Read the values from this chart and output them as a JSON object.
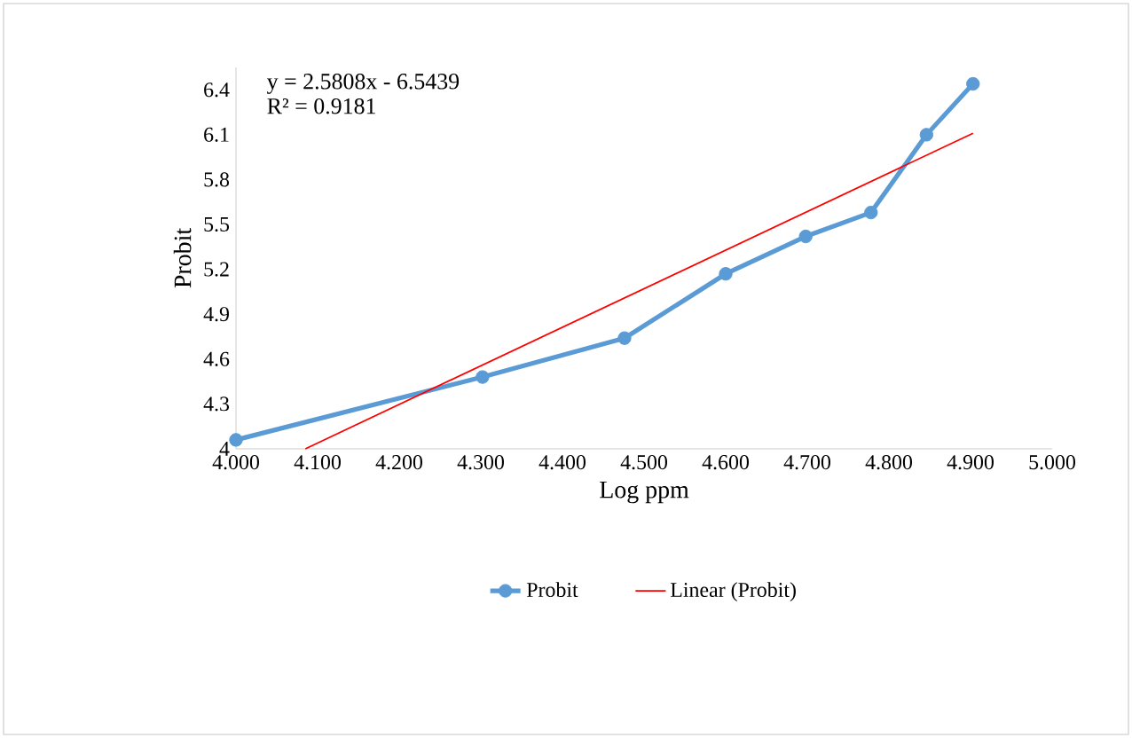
{
  "chart_data": {
    "type": "line",
    "xlabel": "Log ppm",
    "ylabel": "Probit",
    "xlim": [
      4.0,
      5.0
    ],
    "xticks": [
      {
        "value": 4.0,
        "label": "4.000"
      },
      {
        "value": 4.1,
        "label": "4.100"
      },
      {
        "value": 4.2,
        "label": "4.200"
      },
      {
        "value": 4.3,
        "label": "4.300"
      },
      {
        "value": 4.4,
        "label": "4.400"
      },
      {
        "value": 4.5,
        "label": "4.500"
      },
      {
        "value": 4.6,
        "label": "4.600"
      },
      {
        "value": 4.7,
        "label": "4.700"
      },
      {
        "value": 4.8,
        "label": "4.800"
      },
      {
        "value": 4.9,
        "label": "4.900"
      },
      {
        "value": 5.0,
        "label": "5.000"
      }
    ],
    "ylim": [
      4,
      6.55
    ],
    "yticks": [
      4,
      4.3,
      4.6,
      4.9,
      5.2,
      5.5,
      5.8,
      6.1,
      6.4
    ],
    "series": [
      {
        "name": "Probit",
        "color": "#5b9bd5",
        "marker": "circle",
        "x": [
          4.0,
          4.302,
          4.476,
          4.6,
          4.698,
          4.778,
          4.846,
          4.903
        ],
        "values": [
          4.06,
          4.48,
          4.74,
          5.17,
          5.42,
          5.58,
          6.1,
          6.44
        ]
      },
      {
        "name": "Linear (Probit)",
        "color": "#ff0000",
        "marker": "none",
        "x": [
          4.085,
          4.903
        ],
        "values": [
          4.0,
          6.11
        ]
      }
    ],
    "annotations": [
      "y = 2.5808x - 6.5439",
      "R² = 0.9181"
    ],
    "legend": "bottom"
  }
}
